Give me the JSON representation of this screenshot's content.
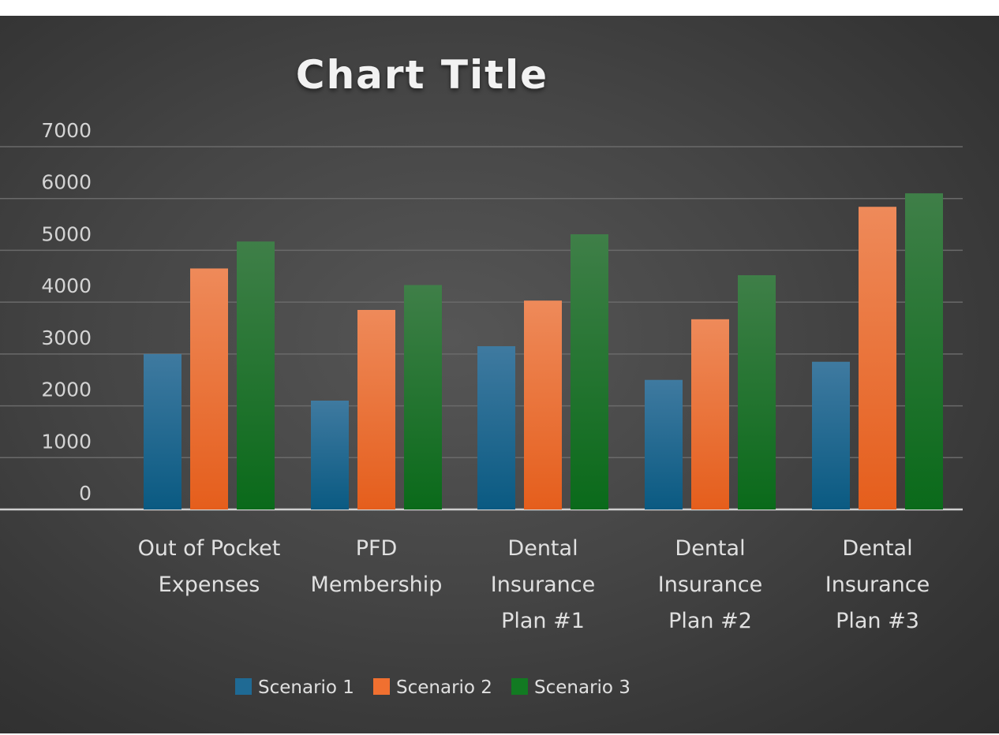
{
  "chart_data": {
    "type": "bar",
    "title": "Chart Title",
    "xlabel": "",
    "ylabel": "",
    "ylim": [
      0,
      7000
    ],
    "yticks": [
      0,
      1000,
      2000,
      3000,
      4000,
      5000,
      6000,
      7000
    ],
    "grid": true,
    "legend_position": "bottom",
    "categories": [
      [
        "Out of Pocket",
        "Expenses"
      ],
      [
        "PFD",
        "Membership"
      ],
      [
        "Dental",
        "Insurance",
        "Plan #1"
      ],
      [
        "Dental",
        "Insurance",
        "Plan #2"
      ],
      [
        "Dental",
        "Insurance",
        "Plan #3"
      ]
    ],
    "series": [
      {
        "name": "Scenario 1",
        "color": "#1f77b4",
        "values": [
          3000,
          2100,
          3150,
          2500,
          2850
        ]
      },
      {
        "name": "Scenario 2",
        "color": "#f07030",
        "values": [
          4650,
          3850,
          4030,
          3670,
          5840
        ]
      },
      {
        "name": "Scenario 3",
        "color": "#1a8a2a",
        "values": [
          5170,
          4330,
          5310,
          4520,
          6100
        ]
      }
    ]
  }
}
